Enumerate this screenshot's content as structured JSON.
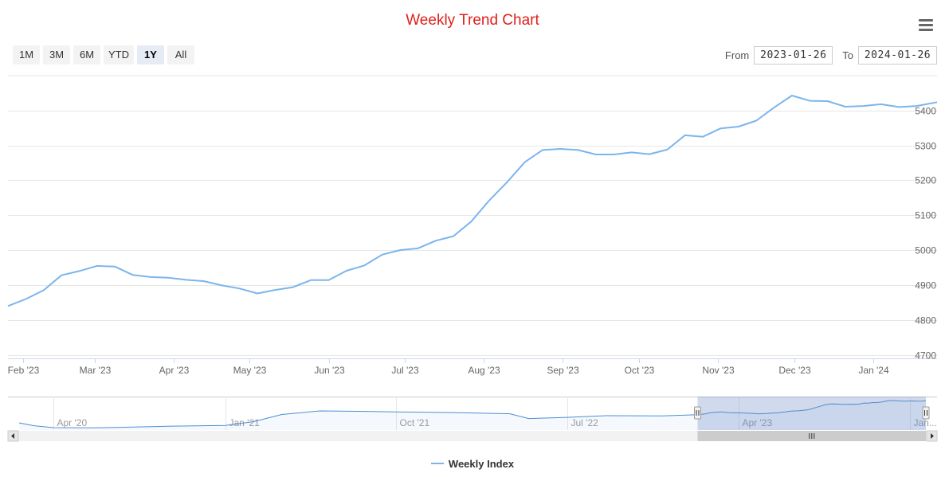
{
  "title": "Weekly Trend Chart",
  "menu_icon": "hamburger-menu-icon",
  "range_selector": {
    "buttons": [
      "1M",
      "3M",
      "6M",
      "YTD",
      "1Y",
      "All"
    ],
    "selected": "1Y",
    "from_label": "From",
    "from_value": "2023-01-26",
    "to_label": "To",
    "to_value": "2024-01-26"
  },
  "legend": {
    "label": "Weekly Index",
    "color": "#7cb5ec"
  },
  "chart_data": {
    "type": "line",
    "title": "Weekly Trend Chart",
    "series": [
      {
        "name": "Weekly Index",
        "color": "#7cb5ec",
        "x": [
          "2023-01-26",
          "2023-02-02",
          "2023-02-09",
          "2023-02-16",
          "2023-02-23",
          "2023-03-02",
          "2023-03-09",
          "2023-03-16",
          "2023-03-23",
          "2023-03-30",
          "2023-04-06",
          "2023-04-13",
          "2023-04-20",
          "2023-04-27",
          "2023-05-04",
          "2023-05-11",
          "2023-05-18",
          "2023-05-25",
          "2023-06-01",
          "2023-06-08",
          "2023-06-15",
          "2023-06-22",
          "2023-06-29",
          "2023-07-06",
          "2023-07-13",
          "2023-07-20",
          "2023-07-27",
          "2023-08-03",
          "2023-08-10",
          "2023-08-17",
          "2023-08-24",
          "2023-08-31",
          "2023-09-07",
          "2023-09-14",
          "2023-09-21",
          "2023-09-28",
          "2023-10-05",
          "2023-10-12",
          "2023-10-19",
          "2023-10-26",
          "2023-11-02",
          "2023-11-09",
          "2023-11-16",
          "2023-11-23",
          "2023-11-30",
          "2023-12-07",
          "2023-12-14",
          "2023-12-21",
          "2023-12-28",
          "2024-01-04",
          "2024-01-11",
          "2024-01-18",
          "2024-01-26"
        ],
        "values": [
          4840,
          4860,
          4885,
          4928,
          4940,
          4955,
          4953,
          4929,
          4923,
          4921,
          4915,
          4911,
          4899,
          4890,
          4876,
          4886,
          4894,
          4914,
          4914,
          4941,
          4956,
          4987,
          5000,
          5005,
          5027,
          5040,
          5082,
          5142,
          5194,
          5252,
          5287,
          5290,
          5287,
          5274,
          5274,
          5280,
          5275,
          5288,
          5329,
          5325,
          5349,
          5354,
          5371,
          5409,
          5443,
          5428,
          5427,
          5411,
          5413,
          5418,
          5410,
          5413,
          5424
        ]
      }
    ],
    "x_ticks": [
      "Feb '23",
      "Mar '23",
      "Apr '23",
      "May '23",
      "Jun '23",
      "Jul '23",
      "Aug '23",
      "Sep '23",
      "Oct '23",
      "Nov '23",
      "Dec '23",
      "Jan '24"
    ],
    "x_tick_dates": [
      "2023-02-01",
      "2023-03-01",
      "2023-04-01",
      "2023-05-01",
      "2023-06-01",
      "2023-07-01",
      "2023-08-01",
      "2023-09-01",
      "2023-10-01",
      "2023-11-01",
      "2023-12-01",
      "2024-01-01"
    ],
    "y_ticks": [
      4700,
      4800,
      4900,
      5000,
      5100,
      5200,
      5300,
      5400
    ],
    "xlim": [
      "2023-01-26",
      "2024-01-26"
    ],
    "ylim": [
      4690,
      5500
    ],
    "xlabel": "",
    "ylabel": "",
    "grid": true,
    "legend_position": "bottom-center"
  },
  "navigator": {
    "x_labels": [
      "Apr '20",
      "Jan '21",
      "Oct '21",
      "Jul '22",
      "Apr '23",
      "Jan..."
    ],
    "x_label_dates": [
      "2020-04-01",
      "2021-01-01",
      "2021-10-01",
      "2022-07-01",
      "2023-04-01",
      "2024-01-01"
    ],
    "range": [
      "2020-02-06",
      "2024-01-26"
    ],
    "selected_range": [
      "2023-01-26",
      "2024-01-26"
    ],
    "ylim": [
      4200,
      5600
    ],
    "series": {
      "x": [
        "2020-02-06",
        "2020-03-01",
        "2020-04-01",
        "2020-06-01",
        "2020-08-01",
        "2020-10-01",
        "2021-01-01",
        "2021-02-15",
        "2021-04-01",
        "2021-06-01",
        "2021-08-01",
        "2021-10-01",
        "2022-01-01",
        "2022-04-01",
        "2022-05-01",
        "2022-07-01",
        "2022-09-01",
        "2022-12-01",
        "2023-01-26"
      ],
      "values": [
        4500,
        4380,
        4300,
        4290,
        4320,
        4360,
        4390,
        4550,
        4850,
        5000,
        4985,
        4960,
        4930,
        4880,
        4680,
        4730,
        4800,
        4790,
        4840
      ]
    }
  }
}
